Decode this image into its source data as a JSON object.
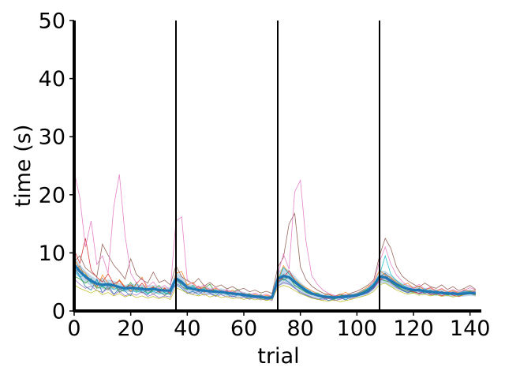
{
  "chart_data": {
    "type": "line",
    "title": "",
    "xlabel": "trial",
    "ylabel": "time (s)",
    "xlim": [
      0,
      144
    ],
    "ylim": [
      0,
      50
    ],
    "xticks": [
      0,
      20,
      40,
      60,
      80,
      100,
      120,
      140
    ],
    "yticks": [
      0,
      10,
      20,
      30,
      40,
      50
    ],
    "xtick_labels": [
      "0",
      "20",
      "40",
      "60",
      "80",
      "100",
      "120",
      "140"
    ],
    "ytick_labels": [
      "0",
      "10",
      "20",
      "30",
      "40",
      "50"
    ],
    "grid": false,
    "legend": false,
    "vertical_lines_x": [
      36,
      72,
      108
    ],
    "mean_series": {
      "color": "#1f77b4",
      "x": [
        0,
        2,
        4,
        6,
        8,
        10,
        12,
        14,
        16,
        18,
        20,
        22,
        24,
        26,
        28,
        30,
        32,
        34,
        36,
        38,
        40,
        42,
        44,
        46,
        48,
        50,
        52,
        54,
        56,
        58,
        60,
        62,
        64,
        66,
        68,
        70,
        72,
        74,
        76,
        78,
        80,
        82,
        84,
        86,
        88,
        90,
        92,
        94,
        96,
        98,
        100,
        102,
        104,
        106,
        108,
        110,
        112,
        114,
        116,
        118,
        120,
        122,
        124,
        126,
        128,
        130,
        132,
        134,
        136,
        138,
        140,
        142
      ],
      "y": [
        8.0,
        6.8,
        5.9,
        5.2,
        4.7,
        4.5,
        4.6,
        4.4,
        4.1,
        3.9,
        4.0,
        3.9,
        3.8,
        3.7,
        3.8,
        3.6,
        3.5,
        3.5,
        5.6,
        5.0,
        4.0,
        3.8,
        3.6,
        3.5,
        3.4,
        3.3,
        3.3,
        3.1,
        3.0,
        2.9,
        2.8,
        2.6,
        2.5,
        2.4,
        2.3,
        2.3,
        5.5,
        6.0,
        5.8,
        5.0,
        4.2,
        3.5,
        3.0,
        2.7,
        2.5,
        2.4,
        2.3,
        2.4,
        2.5,
        2.6,
        2.7,
        3.0,
        3.5,
        4.4,
        5.9,
        5.8,
        5.2,
        4.6,
        4.1,
        3.8,
        3.6,
        3.6,
        3.4,
        3.3,
        3.2,
        3.1,
        3.0,
        3.0,
        2.9,
        3.0,
        3.1,
        3.0
      ],
      "ci_low": [
        6.5,
        5.6,
        4.9,
        4.3,
        3.9,
        3.7,
        3.8,
        3.6,
        3.4,
        3.3,
        3.3,
        3.2,
        3.1,
        3.1,
        3.1,
        3.0,
        2.9,
        2.9,
        4.4,
        4.0,
        3.3,
        3.1,
        3.0,
        2.9,
        2.8,
        2.8,
        2.7,
        2.6,
        2.5,
        2.4,
        2.3,
        2.2,
        2.1,
        2.0,
        1.9,
        1.9,
        4.2,
        4.6,
        4.5,
        4.0,
        3.4,
        2.9,
        2.5,
        2.2,
        2.1,
        2.0,
        1.9,
        2.0,
        2.1,
        2.2,
        2.2,
        2.5,
        2.9,
        3.6,
        4.8,
        4.7,
        4.2,
        3.8,
        3.4,
        3.1,
        3.0,
        3.0,
        2.8,
        2.7,
        2.7,
        2.6,
        2.5,
        2.5,
        2.4,
        2.5,
        2.6,
        2.5
      ],
      "ci_high": [
        9.5,
        8.0,
        6.9,
        6.1,
        5.5,
        5.3,
        5.4,
        5.2,
        4.8,
        4.5,
        4.7,
        4.6,
        4.5,
        4.3,
        4.5,
        4.2,
        4.1,
        4.1,
        6.8,
        6.0,
        4.7,
        4.5,
        4.2,
        4.1,
        4.0,
        3.8,
        3.9,
        3.6,
        3.5,
        3.4,
        3.3,
        3.0,
        2.9,
        2.8,
        2.7,
        2.7,
        6.8,
        7.4,
        7.1,
        6.0,
        5.0,
        4.1,
        3.5,
        3.2,
        2.9,
        2.8,
        2.7,
        2.8,
        2.9,
        3.0,
        3.2,
        3.5,
        4.1,
        5.2,
        7.0,
        6.9,
        6.2,
        5.4,
        4.8,
        4.5,
        4.2,
        4.2,
        4.0,
        3.9,
        3.7,
        3.6,
        3.5,
        3.5,
        3.4,
        3.5,
        3.6,
        3.5
      ]
    },
    "subject_series": [
      {
        "color": "#1f77b4",
        "y": [
          7.5,
          6.0,
          4.2,
          3.6,
          5.5,
          3.1,
          4.4,
          2.9,
          3.8,
          3.4,
          2.6,
          4.9,
          3.2,
          2.8,
          3.9,
          3.3,
          2.7,
          3.5,
          4.5,
          3.9,
          3.0,
          3.4,
          2.8,
          3.6,
          3.1,
          2.6,
          3.3,
          2.9,
          2.4,
          2.8,
          2.5,
          2.2,
          2.6,
          2.1,
          1.9,
          2.2,
          4.8,
          5.6,
          4.9,
          4.0,
          3.1,
          2.7,
          2.3,
          2.0,
          2.2,
          1.8,
          2.1,
          2.3,
          1.9,
          2.4,
          2.6,
          2.9,
          3.2,
          4.0,
          5.8,
          6.5,
          5.0,
          4.2,
          3.5,
          3.1,
          3.6,
          2.9,
          3.3,
          3.0,
          2.7,
          3.4,
          2.8,
          3.1,
          2.6,
          2.9,
          3.2,
          2.8
        ]
      },
      {
        "color": "#ff7f0e",
        "y": [
          9.0,
          7.2,
          6.5,
          5.1,
          4.0,
          6.2,
          4.8,
          3.9,
          5.4,
          4.1,
          3.5,
          4.6,
          5.8,
          3.7,
          4.2,
          3.3,
          4.0,
          2.9,
          6.5,
          6.8,
          4.5,
          4.9,
          3.8,
          4.2,
          3.4,
          3.9,
          3.5,
          3.0,
          3.6,
          2.8,
          3.1,
          2.5,
          2.9,
          2.3,
          2.7,
          2.4,
          5.2,
          7.8,
          6.4,
          5.5,
          4.6,
          4.0,
          3.5,
          2.9,
          2.6,
          3.0,
          2.4,
          2.8,
          3.2,
          2.7,
          3.0,
          3.6,
          4.2,
          5.1,
          7.0,
          6.2,
          5.8,
          5.0,
          4.4,
          4.8,
          3.9,
          4.3,
          3.6,
          4.0,
          3.4,
          3.8,
          3.2,
          3.5,
          3.1,
          3.7,
          3.3,
          3.6
        ]
      },
      {
        "color": "#2ca02c",
        "y": [
          6.0,
          5.5,
          4.8,
          5.6,
          3.9,
          4.2,
          3.6,
          4.7,
          3.2,
          3.8,
          4.9,
          3.4,
          4.1,
          3.0,
          3.6,
          4.4,
          3.1,
          2.8,
          5.9,
          4.2,
          3.7,
          4.4,
          3.3,
          3.9,
          4.6,
          3.1,
          3.5,
          2.9,
          3.2,
          3.7,
          2.7,
          3.0,
          2.4,
          2.8,
          2.2,
          2.5,
          6.1,
          5.3,
          5.9,
          4.4,
          3.8,
          3.2,
          2.8,
          3.1,
          2.5,
          2.3,
          2.0,
          2.6,
          2.8,
          2.4,
          2.9,
          3.3,
          3.8,
          4.5,
          5.5,
          5.2,
          4.9,
          4.3,
          3.7,
          3.4,
          3.2,
          3.8,
          3.0,
          3.5,
          2.9,
          3.2,
          2.7,
          3.0,
          2.8,
          3.1,
          3.4,
          2.9
        ]
      },
      {
        "color": "#d62728",
        "y": [
          10.5,
          8.2,
          12.5,
          7.0,
          5.8,
          5.0,
          6.4,
          4.6,
          5.2,
          4.0,
          4.5,
          3.7,
          4.8,
          3.5,
          4.1,
          3.2,
          3.9,
          3.0,
          5.4,
          4.7,
          4.1,
          3.6,
          4.3,
          3.2,
          3.7,
          3.4,
          3.0,
          3.5,
          2.8,
          3.1,
          2.6,
          2.9,
          2.3,
          2.7,
          2.1,
          2.4,
          5.0,
          5.8,
          6.9,
          5.3,
          4.1,
          3.4,
          3.0,
          2.6,
          2.3,
          2.1,
          2.5,
          2.2,
          2.4,
          2.8,
          2.5,
          3.1,
          3.4,
          4.1,
          5.3,
          6.0,
          5.4,
          4.7,
          4.0,
          3.6,
          3.3,
          3.0,
          3.5,
          2.8,
          3.1,
          2.6,
          3.0,
          2.7,
          2.5,
          2.8,
          3.0,
          2.7
        ]
      },
      {
        "color": "#9467bd",
        "y": [
          5.5,
          4.6,
          3.9,
          4.3,
          3.5,
          3.2,
          3.9,
          2.8,
          3.4,
          2.6,
          3.0,
          2.7,
          3.3,
          2.5,
          2.9,
          2.3,
          2.6,
          2.4,
          4.7,
          4.3,
          3.2,
          2.9,
          3.4,
          2.7,
          3.0,
          2.5,
          2.8,
          2.4,
          2.6,
          2.2,
          2.4,
          2.0,
          2.3,
          1.9,
          2.1,
          1.8,
          4.3,
          4.9,
          4.6,
          3.9,
          3.3,
          2.8,
          2.4,
          2.1,
          1.9,
          2.2,
          1.8,
          2.0,
          2.3,
          2.1,
          2.6,
          2.8,
          3.1,
          3.9,
          5.2,
          5.6,
          4.8,
          4.0,
          3.6,
          3.2,
          3.8,
          3.3,
          3.0,
          3.4,
          2.8,
          3.1,
          2.9,
          3.3,
          3.0,
          3.5,
          3.2,
          3.4
        ]
      },
      {
        "color": "#8c564b",
        "y": [
          8.5,
          9.5,
          7.4,
          6.6,
          5.9,
          11.5,
          9.6,
          7.9,
          6.8,
          5.5,
          9.0,
          6.3,
          5.4,
          4.8,
          6.7,
          4.9,
          5.3,
          4.5,
          7.8,
          5.9,
          5.2,
          4.7,
          5.6,
          4.3,
          4.9,
          4.1,
          4.5,
          3.8,
          4.2,
          3.6,
          3.9,
          3.3,
          3.6,
          3.1,
          3.4,
          3.0,
          7.5,
          9.2,
          15.0,
          16.8,
          7.6,
          5.4,
          4.3,
          3.6,
          3.1,
          2.8,
          2.5,
          2.9,
          2.6,
          3.1,
          3.4,
          3.9,
          4.5,
          5.4,
          9.5,
          12.5,
          10.8,
          7.6,
          6.0,
          5.2,
          4.6,
          4.1,
          4.8,
          4.2,
          3.9,
          4.5,
          3.7,
          4.2,
          3.5,
          3.9,
          4.4,
          3.7
        ]
      },
      {
        "color": "#e377c2",
        "y": [
          24.0,
          19.5,
          11.0,
          15.5,
          8.0,
          9.5,
          6.5,
          18.0,
          23.5,
          13.0,
          6.5,
          4.8,
          5.6,
          4.2,
          5.0,
          3.8,
          4.4,
          3.6,
          15.5,
          16.2,
          5.4,
          4.6,
          4.0,
          4.5,
          3.6,
          4.1,
          3.4,
          3.7,
          3.2,
          3.5,
          3.0,
          2.8,
          3.1,
          2.6,
          2.9,
          2.5,
          6.2,
          9.8,
          7.2,
          20.5,
          22.5,
          12.0,
          6.1,
          4.6,
          3.6,
          3.0,
          2.7,
          2.4,
          2.8,
          2.5,
          3.0,
          3.4,
          4.0,
          5.2,
          8.5,
          11.0,
          8.1,
          6.2,
          5.1,
          4.3,
          3.9,
          4.6,
          3.7,
          4.1,
          3.5,
          3.9,
          3.3,
          3.7,
          3.2,
          3.6,
          4.0,
          3.6
        ]
      },
      {
        "color": "#7f7f7f",
        "y": [
          6.5,
          7.8,
          5.6,
          4.9,
          4.3,
          5.7,
          3.9,
          4.6,
          3.6,
          4.2,
          3.3,
          3.9,
          3.1,
          3.6,
          2.9,
          3.4,
          2.7,
          3.2,
          5.8,
          5.1,
          4.4,
          3.9,
          3.5,
          4.1,
          3.2,
          3.7,
          3.0,
          3.4,
          2.8,
          3.1,
          2.6,
          2.9,
          2.5,
          2.7,
          2.3,
          2.6,
          5.6,
          6.3,
          5.9,
          5.0,
          4.2,
          3.5,
          3.1,
          2.8,
          2.5,
          2.3,
          2.6,
          2.2,
          2.5,
          2.7,
          3.0,
          3.2,
          3.7,
          4.6,
          6.0,
          6.4,
          5.6,
          4.8,
          4.2,
          3.8,
          3.5,
          3.9,
          3.3,
          3.6,
          3.1,
          3.4,
          2.9,
          3.2,
          3.0,
          3.3,
          3.6,
          3.2
        ]
      },
      {
        "color": "#bcbd22",
        "y": [
          4.5,
          3.9,
          3.5,
          3.1,
          3.6,
          2.8,
          3.2,
          2.6,
          3.0,
          2.4,
          2.8,
          2.3,
          2.6,
          2.2,
          2.5,
          2.1,
          2.4,
          2.0,
          4.0,
          3.6,
          3.1,
          2.8,
          2.6,
          2.9,
          2.4,
          2.7,
          2.3,
          2.5,
          2.1,
          2.3,
          2.0,
          2.2,
          1.9,
          2.1,
          1.8,
          2.0,
          4.0,
          4.4,
          4.1,
          3.5,
          3.0,
          2.6,
          2.2,
          2.0,
          1.8,
          1.7,
          1.9,
          1.6,
          1.8,
          2.0,
          2.3,
          2.5,
          2.8,
          3.4,
          4.5,
          4.8,
          4.2,
          3.6,
          3.2,
          2.9,
          3.1,
          2.7,
          2.9,
          2.6,
          2.8,
          2.5,
          2.7,
          2.4,
          2.6,
          2.8,
          3.0,
          2.7
        ]
      },
      {
        "color": "#17becf",
        "y": [
          7.0,
          5.8,
          6.3,
          4.7,
          5.2,
          4.1,
          4.6,
          3.7,
          4.2,
          3.5,
          3.9,
          3.2,
          3.6,
          3.0,
          3.4,
          2.9,
          3.2,
          2.8,
          5.2,
          4.6,
          3.9,
          4.3,
          3.5,
          3.8,
          3.2,
          3.6,
          3.0,
          3.3,
          2.8,
          3.0,
          2.6,
          2.8,
          2.4,
          2.6,
          2.3,
          2.5,
          5.0,
          7.5,
          6.4,
          5.3,
          4.5,
          3.8,
          3.2,
          2.8,
          2.5,
          2.3,
          2.1,
          2.4,
          2.2,
          2.6,
          2.9,
          3.5,
          3.9,
          4.8,
          6.2,
          9.5,
          6.3,
          5.2,
          4.5,
          4.0,
          3.6,
          3.4,
          3.8,
          3.2,
          3.5,
          3.0,
          3.3,
          2.9,
          3.1,
          3.4,
          3.2,
          3.0
        ]
      }
    ]
  }
}
